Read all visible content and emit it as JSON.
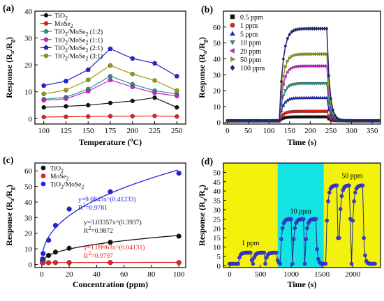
{
  "colors": {
    "black": "#111111",
    "red": "#e8201a",
    "teal": "#1f9a8a",
    "magenta": "#d21ed2",
    "blue": "#2323d8",
    "olive": "#9a9a10",
    "green": "#1f8a2a",
    "orange": "#e27a10",
    "cyan": "#16a9c9",
    "navy": "#1c2a78",
    "yellow_band": "#f2f20c",
    "cyan_band": "#14e3e3"
  },
  "chart_data": [
    {
      "panel": "(a)",
      "type": "line",
      "xlabel": "Temperature (",
      "xlabel_sup": "o",
      "xlabel_end": "C)",
      "ylabel": "Response (Ra/Rg)",
      "x": [
        100,
        125,
        150,
        175,
        200,
        225,
        250
      ],
      "xlim": [
        90,
        260
      ],
      "ylim": [
        -2,
        40
      ],
      "yticks": [
        0,
        10,
        20,
        30,
        40
      ],
      "legend": "top-left",
      "series": [
        {
          "name": "TiO2",
          "color": "black",
          "marker": "circle",
          "values": [
            4.2,
            4.6,
            5.0,
            5.8,
            6.6,
            7.8,
            4.2
          ]
        },
        {
          "name": "MoSe2",
          "color": "red",
          "marker": "circle",
          "values": [
            0.6,
            0.7,
            0.8,
            0.9,
            0.9,
            1.0,
            0.8
          ]
        },
        {
          "name": "TiO2/MoSe2 (1:2)",
          "color": "teal",
          "marker": "circle",
          "values": [
            7.2,
            8.0,
            11.0,
            15.8,
            12.8,
            10.4,
            9.2
          ]
        },
        {
          "name": "TiO2/MoSe2 (1:1)",
          "color": "magenta",
          "marker": "circle",
          "values": [
            6.8,
            7.4,
            10.2,
            14.4,
            11.8,
            9.6,
            8.4
          ]
        },
        {
          "name": "TiO2/MoSe2 (2:1)",
          "color": "blue",
          "marker": "pentagon",
          "values": [
            12.3,
            14.0,
            18.2,
            26.0,
            22.4,
            20.6,
            15.8
          ]
        },
        {
          "name": "TiO2/MoSe2 (3:1)",
          "color": "olive",
          "marker": "circle",
          "values": [
            9.2,
            10.6,
            14.4,
            19.8,
            16.6,
            14.2,
            10.4
          ]
        }
      ]
    },
    {
      "panel": "(b)",
      "type": "line",
      "xlabel": "Time (s)",
      "ylabel": "Response (Ra/Rg)",
      "xlim": [
        -10,
        370
      ],
      "ylim": [
        -1,
        70
      ],
      "xticks": [
        0,
        50,
        100,
        150,
        200,
        250,
        300,
        350
      ],
      "yticks": [
        0,
        10,
        20,
        30,
        40,
        50,
        60
      ],
      "on_time": 125,
      "off_time": 240,
      "legend": "top-left",
      "series": [
        {
          "name": "0.5 ppm",
          "color": "black",
          "marker": "square",
          "peak": 3.5
        },
        {
          "name": "1 ppm",
          "color": "red",
          "marker": "circle",
          "peak": 7.0
        },
        {
          "name": "5 ppm",
          "color": "blue",
          "marker": "triangle-up",
          "peak": 15.5
        },
        {
          "name": "10 ppm",
          "color": "teal",
          "marker": "triangle-down",
          "peak": 24.5
        },
        {
          "name": "20 ppm",
          "color": "magenta",
          "marker": "triangle-left",
          "peak": 35.5
        },
        {
          "name": "50 ppm",
          "color": "olive",
          "marker": "triangle-right",
          "peak": 43.0
        },
        {
          "name": "100 ppm",
          "color": "navy",
          "marker": "diamond",
          "peak": 59.0
        }
      ]
    },
    {
      "panel": "(c)",
      "type": "scatter",
      "xlabel": "Concentration (ppm)",
      "ylabel": "Response (Ra/Rg)",
      "xlim": [
        -5,
        105
      ],
      "ylim": [
        -2,
        65
      ],
      "xticks": [
        0,
        20,
        40,
        60,
        80,
        100
      ],
      "yticks": [
        0,
        10,
        20,
        30,
        40,
        50,
        60
      ],
      "legend": "top-left",
      "series": [
        {
          "name": "TiO2",
          "color": "black",
          "x": [
            0.5,
            1,
            5,
            10,
            20,
            50,
            100
          ],
          "values": [
            2.4,
            3.0,
            5.8,
            7.9,
            10.4,
            14.2,
            18.1
          ],
          "fit": {
            "a": 3.03357,
            "b": 0.3937,
            "eq": "y=3.03357x^(0.3937)",
            "r2": "R2=0.9872",
            "r2_main": "R",
            "r2_sup": "2",
            "r2_rest": "=0.9872"
          }
        },
        {
          "name": "MoSe2",
          "color": "red",
          "x": [
            0.5,
            1,
            5,
            10,
            20,
            50,
            100
          ],
          "values": [
            1.1,
            1.1,
            1.1,
            1.2,
            1.2,
            1.2,
            1.2
          ],
          "fit": {
            "a": 1.09963,
            "b": 0.04131,
            "eq": "y=1.09963x^(0.04131)",
            "r2": "R2=0.9797",
            "r2_main": "R",
            "r2_sup": "2",
            "r2_rest": "=0.9797"
          }
        },
        {
          "name": "TiO2/MoSe2",
          "color": "blue",
          "x": [
            0.5,
            1,
            5,
            10,
            20,
            50,
            100
          ],
          "values": [
            3.5,
            7.0,
            15.5,
            25.0,
            35.5,
            46.6,
            58.5
          ],
          "fit": {
            "a": 9.0843,
            "b": 0.41233,
            "eq": "y=9.0843x^(0.41233)",
            "r2": "R2=0.9781",
            "r2_main": "R",
            "r2_sup": "2",
            "r2_rest": "=0.9781"
          }
        }
      ]
    },
    {
      "panel": "(d)",
      "type": "line",
      "xlabel": "Time (s)",
      "ylabel": "Response (Ra/Rg)",
      "xlim": [
        -100,
        2450
      ],
      "ylim": [
        -1,
        55
      ],
      "xticks": [
        0,
        500,
        1000,
        1500,
        2000
      ],
      "yticks": [
        0,
        5,
        10,
        15,
        20,
        25,
        30,
        35,
        40,
        45,
        50
      ],
      "bands": [
        {
          "label": "1 ppm",
          "from": -100,
          "to": 780,
          "color": "yellow_band",
          "peak": 7
        },
        {
          "label": "10 ppm",
          "from": 780,
          "to": 1530,
          "color": "cyan_band",
          "peak": 25
        },
        {
          "label": "50 ppm",
          "from": 1530,
          "to": 2450,
          "color": "yellow_band",
          "peak": 43
        }
      ],
      "cycles": [
        {
          "on": 140,
          "off": 340,
          "peak": 7
        },
        {
          "on": 380,
          "off": 560,
          "peak": 7
        },
        {
          "on": 580,
          "off": 760,
          "peak": 7
        },
        {
          "on": 820,
          "off": 1000,
          "peak": 25
        },
        {
          "on": 1020,
          "off": 1200,
          "peak": 25
        },
        {
          "on": 1220,
          "off": 1400,
          "peak": 25
        },
        {
          "on": 1560,
          "off": 1740,
          "peak": 43
        },
        {
          "on": 1770,
          "off": 1950,
          "peak": 43
        },
        {
          "on": 1980,
          "off": 2160,
          "peak": 43
        }
      ]
    }
  ]
}
